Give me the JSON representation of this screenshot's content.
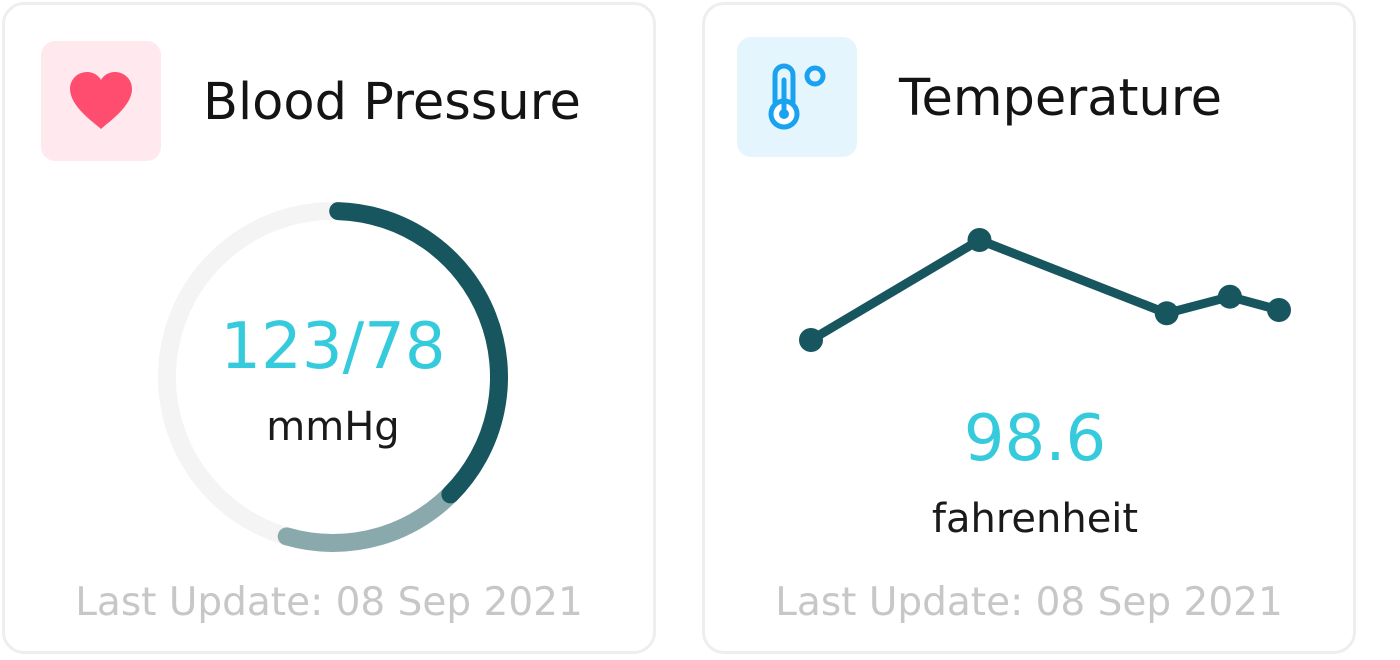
{
  "colors": {
    "accent": "#36cbdc",
    "dark_teal": "#17565f",
    "light_teal": "#8aa9ad",
    "track": "#f4f4f4",
    "heart": "#ff4d70",
    "heart_tile": "#ffe9ee",
    "thermo": "#19a2f0",
    "thermo_tile": "#e5f5fd",
    "muted_text": "#c7c7c7"
  },
  "blood_pressure": {
    "title": "Blood Pressure",
    "icon": "heart-icon",
    "value": "123/78",
    "unit": "mmHg",
    "last_update": "Last Update: 08 Sep 2021",
    "gauge": {
      "primary_fraction": 0.37,
      "secondary_fraction": 0.17
    }
  },
  "temperature": {
    "title": "Temperature",
    "icon": "thermometer-icon",
    "value": "98.6",
    "unit": "fahrenheit",
    "last_update": "Last Update: 08 Sep 2021",
    "chart_data": {
      "type": "line",
      "title": "",
      "series": [
        {
          "values": [
            1.0,
            4.0,
            1.8,
            2.3,
            1.9
          ]
        }
      ],
      "x": [
        0,
        1,
        2,
        3,
        4
      ],
      "grid": false,
      "legend": "none"
    }
  }
}
